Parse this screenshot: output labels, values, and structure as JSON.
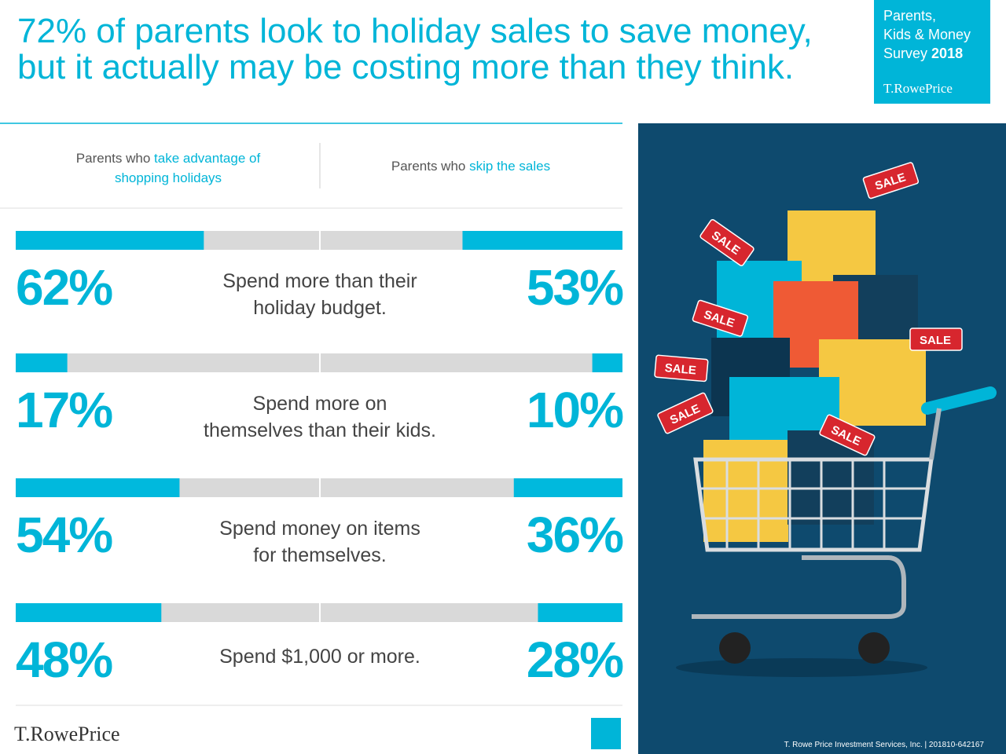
{
  "header": {
    "title": [
      "72% of parents look to holiday sales to save money,",
      "but it actually may be costing more than they think."
    ],
    "badge": [
      "Parents,",
      "Kids & Money",
      "Survey"
    ],
    "badge_year": "2018",
    "badge_logo": "T.RowePrice"
  },
  "chart_data": {
    "type": "bar",
    "xlim": [
      0,
      100
    ],
    "categories": [
      [
        "Spend more than their",
        "holiday budget."
      ],
      [
        "Spend more on",
        "themselves than their kids."
      ],
      [
        "Spend money on items",
        "for themselves."
      ],
      [
        "Spend $1,000 or more."
      ]
    ],
    "series": [
      {
        "lead": "Parents who",
        "em": [
          "take advantage of",
          "shopping holidays"
        ],
        "color": "#00b9dd",
        "values": [
          62,
          17,
          54,
          48
        ],
        "value_labels": [
          "62%",
          "17%",
          "54%",
          "48%"
        ]
      },
      {
        "lead": "Parents who",
        "em": [
          "skip the sales"
        ],
        "color": "#00b9dd",
        "values": [
          53,
          10,
          36,
          28
        ],
        "value_labels": [
          "53%",
          "10%",
          "36%",
          "28%"
        ]
      }
    ]
  },
  "illustration": {
    "tag": "SALE"
  },
  "footer": {
    "logo": "T.RowePrice",
    "note": "T. Rowe Price Investment Services, Inc. | 201810-642167"
  }
}
